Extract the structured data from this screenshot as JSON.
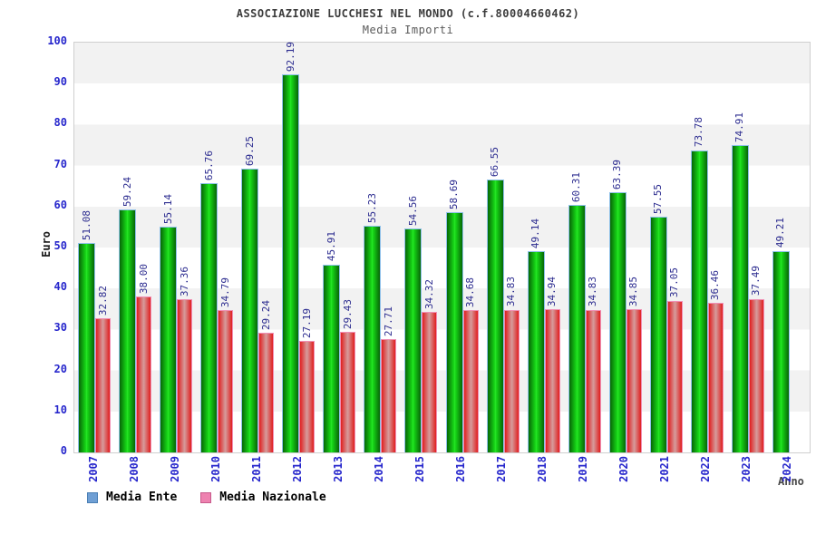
{
  "chart_data": {
    "type": "bar",
    "title": "ASSOCIAZIONE LUCCHESI NEL MONDO (c.f.80004660462)",
    "subtitle": "Media Importi",
    "xlabel": "Anno",
    "ylabel": "Euro",
    "ylim": [
      0,
      100
    ],
    "ytick_step": 10,
    "grid": "alternating horizontal gray/white bands every 10 units",
    "legend_position": "bottom-left",
    "categories": [
      "2007",
      "2008",
      "2009",
      "2010",
      "2011",
      "2012",
      "2013",
      "2014",
      "2015",
      "2016",
      "2017",
      "2018",
      "2019",
      "2020",
      "2021",
      "2022",
      "2023",
      "2024"
    ],
    "series": [
      {
        "name": "Media Ente",
        "legend_color": "#6f9fd4",
        "legend_border_color": "#4a7fb5",
        "bar_color": "#17d817",
        "bar_edge_color": "#076607",
        "bar_outline_color": "#8fc1ea",
        "values": [
          51.08,
          59.24,
          55.14,
          65.76,
          69.25,
          92.19,
          45.91,
          55.23,
          54.56,
          58.69,
          66.55,
          49.14,
          60.31,
          63.39,
          57.55,
          73.78,
          74.91,
          49.21
        ]
      },
      {
        "name": "Media Nazionale",
        "legend_color": "#ee82b0",
        "legend_border_color": "#c75a8b",
        "bar_color": "#e01f1f",
        "bar_center_color": "#d69090",
        "bar_outline_color": "#f08fb4",
        "values": [
          32.82,
          38.0,
          37.36,
          34.79,
          29.24,
          27.19,
          29.43,
          27.71,
          34.32,
          34.68,
          34.83,
          34.94,
          34.83,
          34.85,
          37.05,
          36.46,
          37.49,
          null
        ]
      }
    ],
    "colors": {
      "axis_tick_text": "#2626cc",
      "value_label_text": "#2b2b8f",
      "band_gray": "#f2f2f2",
      "plot_border": "#cfcfcf",
      "title_text": "#3c3c3c",
      "subtitle_text": "#5a5a5a"
    }
  }
}
